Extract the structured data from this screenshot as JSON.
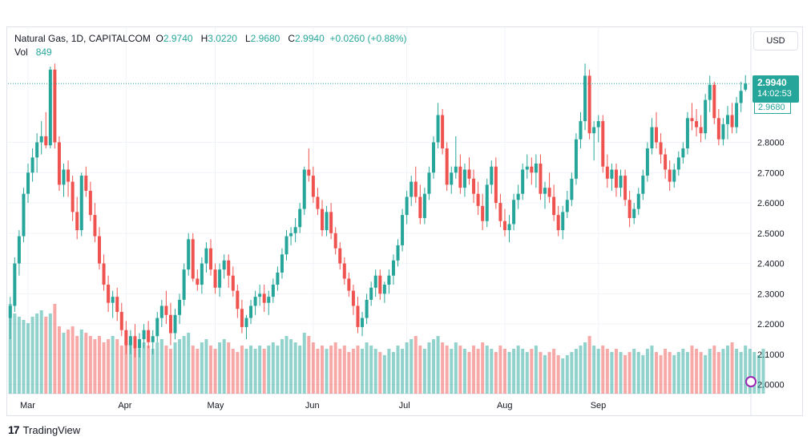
{
  "legend": {
    "symbol": "Natural Gas, 1D, CAPITALCOM",
    "o_key": "O",
    "o_val": "2.9740",
    "h_key": "H",
    "h_val": "3.0220",
    "l_key": "L",
    "l_val": "2.9680",
    "c_key": "C",
    "c_val": "2.9940",
    "change": "+0.0260 (+0.88%)",
    "vol_key": "Vol",
    "vol_val": "849"
  },
  "currency": "USD",
  "price_tag": {
    "price": "2.9940",
    "countdown": "14:02:53",
    "prev": "2.9680"
  },
  "branding": {
    "logo_mark": "17",
    "name": "TradingView"
  },
  "colors": {
    "up": "#26a69a",
    "down": "#ef5350",
    "up_vol": "#26a69a",
    "down_vol": "#ef5350",
    "grid": "#f0f3fa",
    "axis_text": "#131722"
  },
  "chart_data": {
    "type": "candlestick",
    "title": "Natural Gas, 1D, CAPITALCOM",
    "xlabel": "",
    "ylabel": "",
    "ylim": [
      1.97,
      3.18
    ],
    "y_ticks": [
      "2.0000",
      "2.1000",
      "2.2000",
      "2.3000",
      "2.4000",
      "2.5000",
      "2.6000",
      "2.7000",
      "2.8000"
    ],
    "x_ticks": [
      "Mar",
      "Apr",
      "May",
      "Jun",
      "Jul",
      "Aug",
      "Sep"
    ],
    "last_price": 2.994,
    "grid": true,
    "candles": [
      [
        2.22,
        2.29,
        2.15,
        2.26
      ],
      [
        2.26,
        2.42,
        2.24,
        2.4
      ],
      [
        2.4,
        2.51,
        2.36,
        2.49
      ],
      [
        2.49,
        2.65,
        2.47,
        2.63
      ],
      [
        2.63,
        2.73,
        2.6,
        2.7
      ],
      [
        2.7,
        2.78,
        2.67,
        2.75
      ],
      [
        2.75,
        2.83,
        2.7,
        2.8
      ],
      [
        2.8,
        2.87,
        2.76,
        2.82
      ],
      [
        2.82,
        2.9,
        2.78,
        2.79
      ],
      [
        2.79,
        3.05,
        2.78,
        3.04
      ],
      [
        3.04,
        3.06,
        2.78,
        2.8
      ],
      [
        2.8,
        2.82,
        2.64,
        2.66
      ],
      [
        2.66,
        2.73,
        2.62,
        2.71
      ],
      [
        2.71,
        2.74,
        2.62,
        2.67
      ],
      [
        2.67,
        2.69,
        2.54,
        2.57
      ],
      [
        2.57,
        2.62,
        2.48,
        2.51
      ],
      [
        2.51,
        2.7,
        2.49,
        2.69
      ],
      [
        2.69,
        2.72,
        2.62,
        2.64
      ],
      [
        2.64,
        2.67,
        2.54,
        2.56
      ],
      [
        2.56,
        2.6,
        2.47,
        2.49
      ],
      [
        2.49,
        2.52,
        2.38,
        2.4
      ],
      [
        2.4,
        2.43,
        2.31,
        2.33
      ],
      [
        2.33,
        2.36,
        2.24,
        2.27
      ],
      [
        2.27,
        2.31,
        2.22,
        2.29
      ],
      [
        2.29,
        2.32,
        2.21,
        2.24
      ],
      [
        2.24,
        2.27,
        2.16,
        2.18
      ],
      [
        2.18,
        2.21,
        2.1,
        2.13
      ],
      [
        2.13,
        2.18,
        2.1,
        2.16
      ],
      [
        2.16,
        2.2,
        2.09,
        2.12
      ],
      [
        2.12,
        2.17,
        2.09,
        2.15
      ],
      [
        2.15,
        2.2,
        2.12,
        2.18
      ],
      [
        2.18,
        2.21,
        2.12,
        2.14
      ],
      [
        2.14,
        2.18,
        2.1,
        2.16
      ],
      [
        2.16,
        2.24,
        2.14,
        2.22
      ],
      [
        2.22,
        2.28,
        2.19,
        2.26
      ],
      [
        2.26,
        2.31,
        2.2,
        2.23
      ],
      [
        2.23,
        2.27,
        2.13,
        2.17
      ],
      [
        2.17,
        2.25,
        2.15,
        2.23
      ],
      [
        2.23,
        2.3,
        2.2,
        2.28
      ],
      [
        2.28,
        2.4,
        2.26,
        2.38
      ],
      [
        2.38,
        2.5,
        2.36,
        2.48
      ],
      [
        2.48,
        2.5,
        2.34,
        2.35
      ],
      [
        2.35,
        2.38,
        2.31,
        2.33
      ],
      [
        2.33,
        2.42,
        2.3,
        2.4
      ],
      [
        2.4,
        2.47,
        2.37,
        2.45
      ],
      [
        2.45,
        2.48,
        2.36,
        2.38
      ],
      [
        2.38,
        2.4,
        2.3,
        2.32
      ],
      [
        2.32,
        2.4,
        2.29,
        2.38
      ],
      [
        2.38,
        2.43,
        2.35,
        2.41
      ],
      [
        2.41,
        2.43,
        2.32,
        2.36
      ],
      [
        2.36,
        2.39,
        2.29,
        2.31
      ],
      [
        2.31,
        2.33,
        2.22,
        2.25
      ],
      [
        2.25,
        2.28,
        2.17,
        2.19
      ],
      [
        2.19,
        2.23,
        2.15,
        2.22
      ],
      [
        2.22,
        2.28,
        2.2,
        2.26
      ],
      [
        2.26,
        2.31,
        2.23,
        2.29
      ],
      [
        2.29,
        2.33,
        2.26,
        2.3
      ],
      [
        2.3,
        2.33,
        2.24,
        2.27
      ],
      [
        2.27,
        2.31,
        2.23,
        2.29
      ],
      [
        2.29,
        2.35,
        2.27,
        2.33
      ],
      [
        2.33,
        2.39,
        2.31,
        2.37
      ],
      [
        2.37,
        2.45,
        2.35,
        2.43
      ],
      [
        2.43,
        2.51,
        2.41,
        2.49
      ],
      [
        2.49,
        2.52,
        2.46,
        2.5
      ],
      [
        2.5,
        2.55,
        2.47,
        2.52
      ],
      [
        2.52,
        2.6,
        2.5,
        2.58
      ],
      [
        2.58,
        2.72,
        2.56,
        2.71
      ],
      [
        2.71,
        2.78,
        2.67,
        2.69
      ],
      [
        2.69,
        2.72,
        2.6,
        2.62
      ],
      [
        2.62,
        2.65,
        2.56,
        2.58
      ],
      [
        2.58,
        2.61,
        2.49,
        2.51
      ],
      [
        2.51,
        2.59,
        2.49,
        2.57
      ],
      [
        2.57,
        2.6,
        2.48,
        2.5
      ],
      [
        2.5,
        2.52,
        2.43,
        2.45
      ],
      [
        2.45,
        2.47,
        2.38,
        2.4
      ],
      [
        2.4,
        2.42,
        2.33,
        2.35
      ],
      [
        2.35,
        2.37,
        2.29,
        2.31
      ],
      [
        2.31,
        2.33,
        2.23,
        2.26
      ],
      [
        2.26,
        2.29,
        2.17,
        2.19
      ],
      [
        2.19,
        2.24,
        2.16,
        2.22
      ],
      [
        2.22,
        2.3,
        2.2,
        2.28
      ],
      [
        2.28,
        2.34,
        2.26,
        2.32
      ],
      [
        2.32,
        2.38,
        2.29,
        2.36
      ],
      [
        2.36,
        2.38,
        2.28,
        2.3
      ],
      [
        2.3,
        2.34,
        2.27,
        2.33
      ],
      [
        2.33,
        2.38,
        2.3,
        2.36
      ],
      [
        2.36,
        2.43,
        2.33,
        2.41
      ],
      [
        2.41,
        2.48,
        2.39,
        2.46
      ],
      [
        2.46,
        2.58,
        2.44,
        2.56
      ],
      [
        2.56,
        2.64,
        2.53,
        2.62
      ],
      [
        2.62,
        2.69,
        2.59,
        2.67
      ],
      [
        2.67,
        2.72,
        2.6,
        2.62
      ],
      [
        2.62,
        2.66,
        2.53,
        2.55
      ],
      [
        2.55,
        2.65,
        2.53,
        2.63
      ],
      [
        2.63,
        2.72,
        2.61,
        2.7
      ],
      [
        2.7,
        2.82,
        2.68,
        2.8
      ],
      [
        2.8,
        2.93,
        2.78,
        2.89
      ],
      [
        2.89,
        2.91,
        2.76,
        2.78
      ],
      [
        2.78,
        2.8,
        2.64,
        2.66
      ],
      [
        2.66,
        2.72,
        2.63,
        2.7
      ],
      [
        2.7,
        2.82,
        2.68,
        2.72
      ],
      [
        2.72,
        2.76,
        2.63,
        2.65
      ],
      [
        2.65,
        2.73,
        2.62,
        2.71
      ],
      [
        2.71,
        2.75,
        2.66,
        2.68
      ],
      [
        2.68,
        2.71,
        2.6,
        2.63
      ],
      [
        2.63,
        2.67,
        2.56,
        2.59
      ],
      [
        2.59,
        2.63,
        2.51,
        2.54
      ],
      [
        2.54,
        2.68,
        2.52,
        2.66
      ],
      [
        2.66,
        2.74,
        2.63,
        2.72
      ],
      [
        2.72,
        2.75,
        2.58,
        2.6
      ],
      [
        2.6,
        2.63,
        2.52,
        2.54
      ],
      [
        2.54,
        2.58,
        2.49,
        2.51
      ],
      [
        2.51,
        2.56,
        2.47,
        2.53
      ],
      [
        2.53,
        2.63,
        2.51,
        2.61
      ],
      [
        2.61,
        2.66,
        2.58,
        2.63
      ],
      [
        2.63,
        2.73,
        2.61,
        2.71
      ],
      [
        2.71,
        2.76,
        2.68,
        2.72
      ],
      [
        2.72,
        2.75,
        2.66,
        2.7
      ],
      [
        2.7,
        2.76,
        2.65,
        2.73
      ],
      [
        2.73,
        2.76,
        2.61,
        2.63
      ],
      [
        2.63,
        2.67,
        2.58,
        2.65
      ],
      [
        2.65,
        2.7,
        2.6,
        2.62
      ],
      [
        2.62,
        2.66,
        2.54,
        2.56
      ],
      [
        2.56,
        2.59,
        2.49,
        2.51
      ],
      [
        2.51,
        2.59,
        2.48,
        2.57
      ],
      [
        2.57,
        2.64,
        2.55,
        2.61
      ],
      [
        2.61,
        2.7,
        2.59,
        2.68
      ],
      [
        2.68,
        2.83,
        2.66,
        2.81
      ],
      [
        2.81,
        2.9,
        2.78,
        2.87
      ],
      [
        2.87,
        3.06,
        2.84,
        3.02
      ],
      [
        3.02,
        3.04,
        2.81,
        2.83
      ],
      [
        2.83,
        2.87,
        2.74,
        2.85
      ],
      [
        2.85,
        2.89,
        2.8,
        2.87
      ],
      [
        2.87,
        2.89,
        2.7,
        2.72
      ],
      [
        2.72,
        2.76,
        2.65,
        2.68
      ],
      [
        2.68,
        2.73,
        2.64,
        2.71
      ],
      [
        2.71,
        2.73,
        2.62,
        2.65
      ],
      [
        2.65,
        2.71,
        2.62,
        2.69
      ],
      [
        2.69,
        2.71,
        2.59,
        2.61
      ],
      [
        2.61,
        2.64,
        2.52,
        2.55
      ],
      [
        2.55,
        2.6,
        2.53,
        2.58
      ],
      [
        2.58,
        2.65,
        2.56,
        2.63
      ],
      [
        2.63,
        2.71,
        2.61,
        2.69
      ],
      [
        2.69,
        2.8,
        2.67,
        2.78
      ],
      [
        2.78,
        2.88,
        2.76,
        2.85
      ],
      [
        2.85,
        2.9,
        2.78,
        2.8
      ],
      [
        2.8,
        2.83,
        2.73,
        2.76
      ],
      [
        2.76,
        2.78,
        2.68,
        2.71
      ],
      [
        2.71,
        2.74,
        2.64,
        2.67
      ],
      [
        2.67,
        2.73,
        2.65,
        2.71
      ],
      [
        2.71,
        2.77,
        2.69,
        2.75
      ],
      [
        2.75,
        2.8,
        2.73,
        2.78
      ],
      [
        2.78,
        2.9,
        2.76,
        2.88
      ],
      [
        2.88,
        2.93,
        2.84,
        2.87
      ],
      [
        2.87,
        2.91,
        2.82,
        2.85
      ],
      [
        2.85,
        2.89,
        2.8,
        2.83
      ],
      [
        2.83,
        2.96,
        2.81,
        2.94
      ],
      [
        2.94,
        3.02,
        2.9,
        2.99
      ],
      [
        2.99,
        3.0,
        2.86,
        2.88
      ],
      [
        2.88,
        2.91,
        2.79,
        2.81
      ],
      [
        2.81,
        2.88,
        2.79,
        2.86
      ],
      [
        2.86,
        2.92,
        2.81,
        2.89
      ],
      [
        2.89,
        2.93,
        2.83,
        2.85
      ],
      [
        2.85,
        2.95,
        2.83,
        2.93
      ],
      [
        2.93,
        3.0,
        2.9,
        2.97
      ],
      [
        2.974,
        3.022,
        2.968,
        2.994
      ]
    ],
    "volume": [
      0.28,
      0.25,
      0.24,
      0.23,
      0.22,
      0.24,
      0.25,
      0.26,
      0.24,
      0.25,
      0.28,
      0.21,
      0.19,
      0.2,
      0.21,
      0.18,
      0.2,
      0.19,
      0.18,
      0.17,
      0.18,
      0.16,
      0.17,
      0.18,
      0.17,
      0.15,
      0.16,
      0.17,
      0.15,
      0.14,
      0.16,
      0.15,
      0.14,
      0.16,
      0.17,
      0.15,
      0.14,
      0.16,
      0.17,
      0.18,
      0.19,
      0.15,
      0.14,
      0.16,
      0.17,
      0.15,
      0.14,
      0.16,
      0.17,
      0.16,
      0.14,
      0.13,
      0.15,
      0.14,
      0.15,
      0.14,
      0.15,
      0.14,
      0.15,
      0.16,
      0.15,
      0.17,
      0.18,
      0.17,
      0.16,
      0.15,
      0.19,
      0.18,
      0.16,
      0.14,
      0.15,
      0.14,
      0.15,
      0.16,
      0.14,
      0.15,
      0.13,
      0.14,
      0.15,
      0.14,
      0.16,
      0.15,
      0.14,
      0.13,
      0.12,
      0.14,
      0.13,
      0.15,
      0.14,
      0.16,
      0.17,
      0.18,
      0.15,
      0.14,
      0.16,
      0.17,
      0.18,
      0.16,
      0.15,
      0.14,
      0.16,
      0.15,
      0.14,
      0.13,
      0.15,
      0.14,
      0.16,
      0.15,
      0.14,
      0.13,
      0.15,
      0.14,
      0.13,
      0.14,
      0.15,
      0.14,
      0.13,
      0.14,
      0.15,
      0.13,
      0.12,
      0.13,
      0.14,
      0.12,
      0.11,
      0.12,
      0.13,
      0.14,
      0.15,
      0.16,
      0.18,
      0.15,
      0.14,
      0.15,
      0.14,
      0.13,
      0.14,
      0.13,
      0.12,
      0.13,
      0.14,
      0.13,
      0.12,
      0.14,
      0.15,
      0.13,
      0.12,
      0.14,
      0.13,
      0.12,
      0.13,
      0.14,
      0.13,
      0.15,
      0.14,
      0.13,
      0.12,
      0.14,
      0.15,
      0.13,
      0.14,
      0.15,
      0.16,
      0.14,
      0.13,
      0.15,
      0.14,
      0.13,
      0.12,
      0.14
    ]
  }
}
